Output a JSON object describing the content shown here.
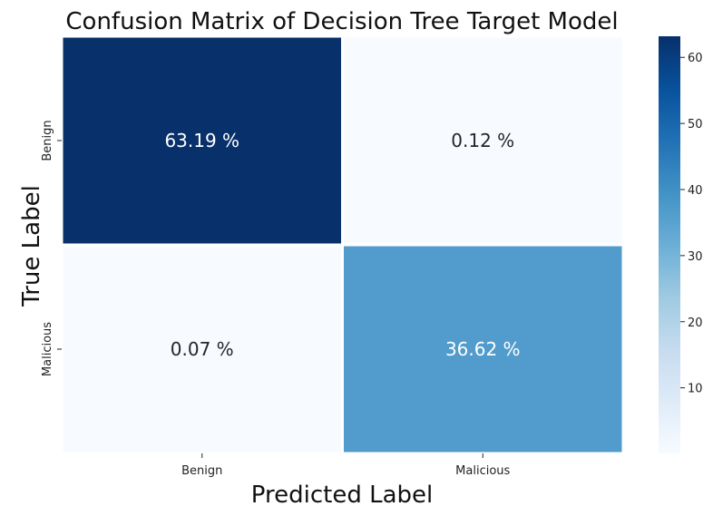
{
  "chart_data": {
    "type": "heatmap",
    "title": "Confusion Matrix of Decision Tree Target Model",
    "xlabel": "Predicted Label",
    "ylabel": "True Label",
    "x_categories": [
      "Benign",
      "Malicious"
    ],
    "y_categories": [
      "Benign",
      "Malicious"
    ],
    "values": [
      [
        63.19,
        0.12
      ],
      [
        0.07,
        36.62
      ]
    ],
    "cell_labels": [
      [
        "63.19 %",
        "0.12 %"
      ],
      [
        "0.07 %",
        "36.62 %"
      ]
    ],
    "colormap": "Blues",
    "color_range": [
      0.07,
      63.19
    ],
    "colorbar_ticks": [
      10,
      20,
      30,
      40,
      50,
      60
    ],
    "colorbar_tick_labels": [
      "10",
      "20",
      "30",
      "40",
      "50",
      "60"
    ]
  }
}
